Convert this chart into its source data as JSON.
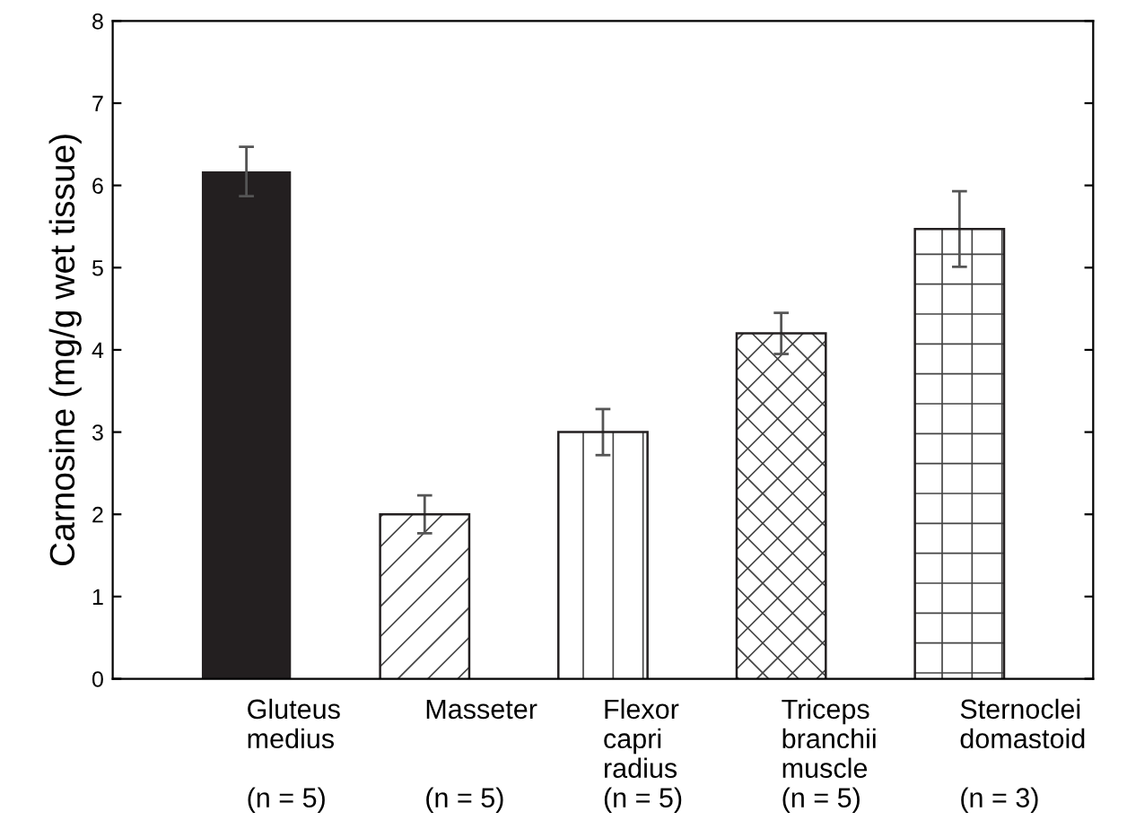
{
  "chart_data": {
    "type": "bar",
    "ylabel": "Carnosine (mg/g wet tissue)",
    "categories": [
      "Gluteus\nmedius\n\n(n = 5)",
      "Masseter\n\n\n(n = 5)",
      "Flexor\ncapri\nradius\n(n = 5)",
      "Triceps\nbranchii\nmuscle\n(n = 5)",
      "Sternoclei\ndomastoid\n\n(n = 3)"
    ],
    "values": [
      6.17,
      2.0,
      3.0,
      4.2,
      5.47
    ],
    "errors": [
      0.3,
      0.23,
      0.28,
      0.25,
      0.46
    ],
    "colors": [
      "#231f20",
      "#ffffff",
      "#ffffff",
      "#ffffff",
      "#ffffff"
    ],
    "ylim": [
      0,
      8
    ],
    "yticks": [
      0,
      1,
      2,
      3,
      4,
      5,
      6,
      7,
      8
    ],
    "grid": false,
    "legend": false
  }
}
